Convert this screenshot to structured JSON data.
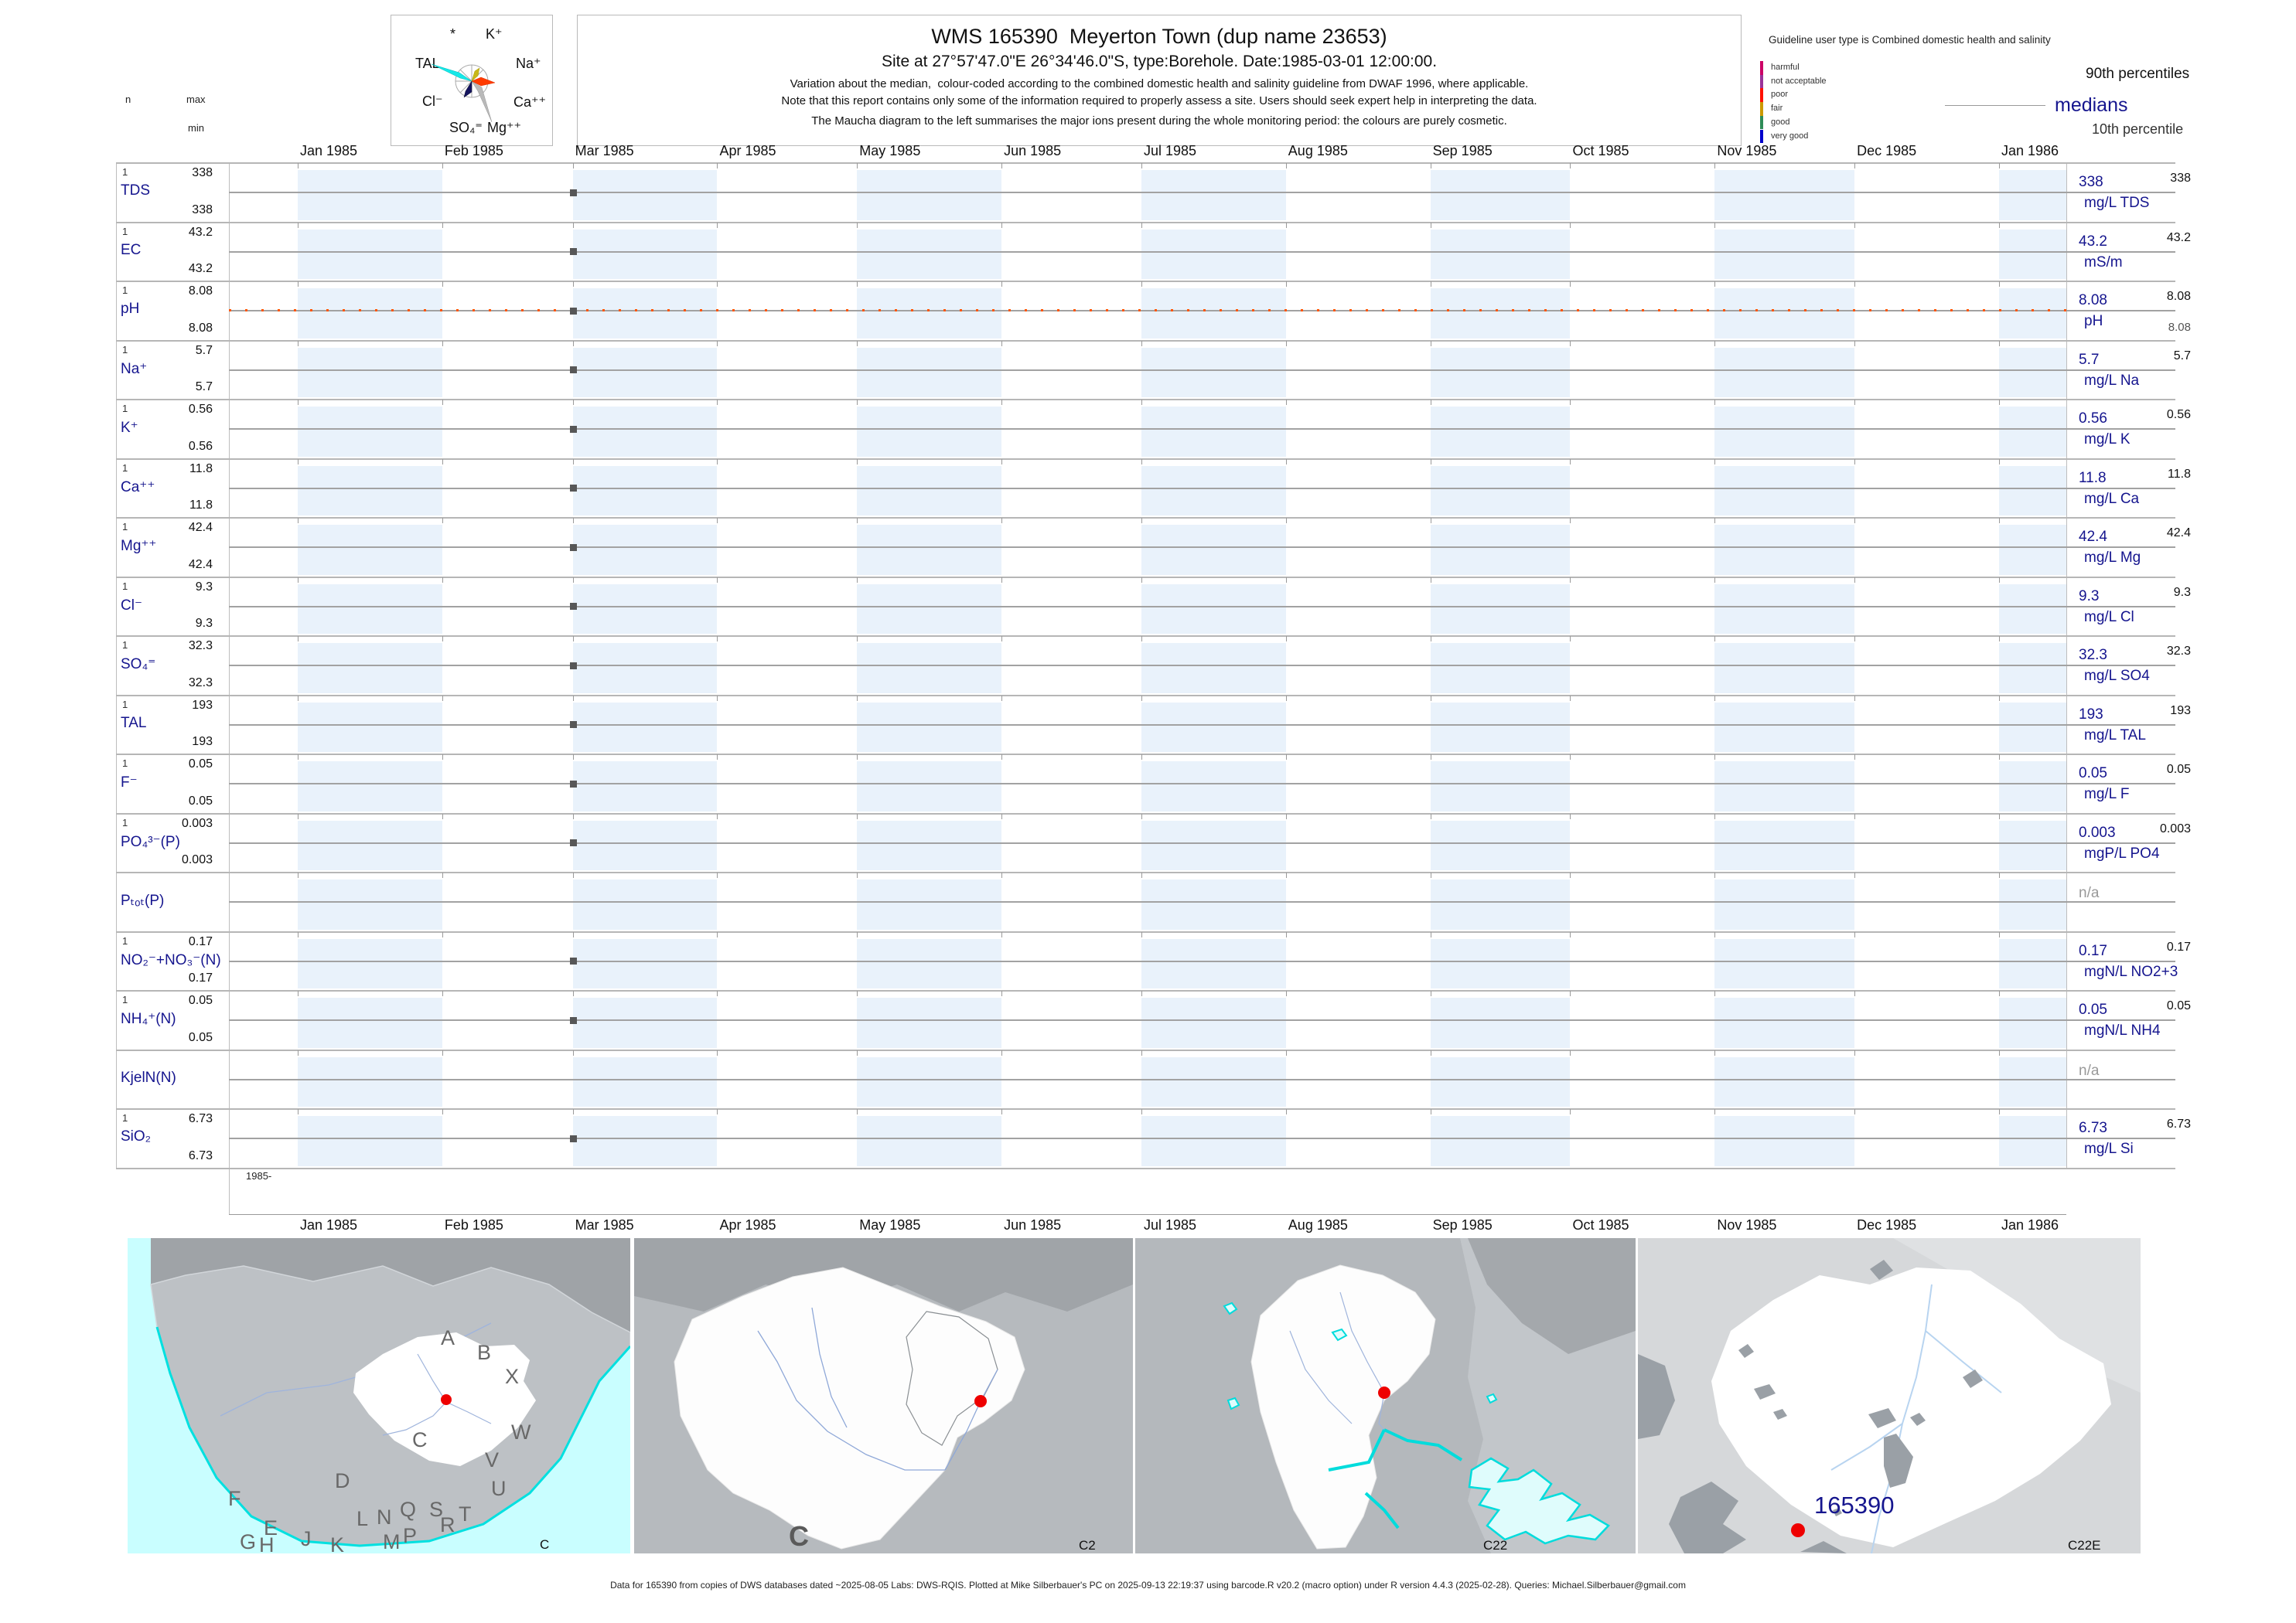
{
  "header": {
    "title": "WMS 165390  Meyerton Town (dup name 23653)",
    "subtitle": "Site at 27°57'47.0\"E 26°34'46.0\"S, type:Borehole. Date:1985-03-01 12:00:00.",
    "note1": "Variation about the median,  colour-coded according to the combined domestic health and salinity guideline from DWAF 1996, where applicable.",
    "note2": "Note that this report contains only some of the information required to properly assess a site. Users should seek expert help in interpreting the data.",
    "note3": "The Maucha diagram to the left summarises the major ions present during the whole monitoring period: the colours are purely cosmetic."
  },
  "maucha": {
    "labels": [
      "*",
      "K⁺",
      "TAL",
      "Na⁺",
      "Cl⁻",
      "Ca⁺⁺",
      "SO₄⁼",
      "Mg⁺⁺"
    ]
  },
  "gutter_headers": {
    "n": "n",
    "max": "max",
    "min": "min"
  },
  "legend": {
    "guideline": "Guideline user type is Combined domestic health and salinity",
    "classes": [
      {
        "label": "harmful",
        "color": "#cc0066"
      },
      {
        "label": "not acceptable",
        "color": "#993399"
      },
      {
        "label": "poor",
        "color": "#ff1100"
      },
      {
        "label": "fair",
        "color": "#cc9900"
      },
      {
        "label": "good",
        "color": "#2e8b57"
      },
      {
        "label": "very good",
        "color": "#0000cc"
      }
    ],
    "p90_label": "90th percentiles",
    "median_label": "medians",
    "p10_label": "10th percentile"
  },
  "axis": {
    "months": [
      "Jan 1985",
      "Feb 1985",
      "Mar 1985",
      "Apr 1985",
      "May 1985",
      "Jun 1985",
      "Jul 1985",
      "Aug 1985",
      "Sep 1985",
      "Oct 1985",
      "Nov 1985",
      "Dec 1985",
      "Jan 1986"
    ],
    "year_label": "1985-"
  },
  "chart_data": {
    "type": "table",
    "title": "WMS 165390 Meyerton Town (dup name 23653)",
    "site": "165390",
    "sample_date": "1985-03-01 12:00:00",
    "x_range": [
      "mid Dec 1984",
      "mid Jan 1986"
    ],
    "x_tick_labels": [
      "Jan 1985",
      "Feb 1985",
      "Mar 1985",
      "Apr 1985",
      "May 1985",
      "Jun 1985",
      "Jul 1985",
      "Aug 1985",
      "Sep 1985",
      "Oct 1985",
      "Nov 1985",
      "Dec 1985",
      "Jan 1986"
    ],
    "sample_month_index": 2,
    "na_text": "n/a",
    "parameters": [
      {
        "name": "TDS",
        "n": "1",
        "max": "338",
        "min": "338",
        "p90": "338",
        "median": "338",
        "p10": "",
        "unit": "mg/L TDS",
        "na": false,
        "guideline_dashes": false
      },
      {
        "name": "EC",
        "n": "1",
        "max": "43.2",
        "min": "43.2",
        "p90": "43.2",
        "median": "43.2",
        "p10": "",
        "unit": "mS/m",
        "na": false,
        "guideline_dashes": false
      },
      {
        "name": "pH",
        "n": "1",
        "max": "8.08",
        "min": "8.08",
        "p90": "8.08",
        "median": "8.08",
        "p10": "8.08",
        "unit": "pH",
        "na": false,
        "guideline_dashes": true
      },
      {
        "name": "Na⁺",
        "n": "1",
        "max": "5.7",
        "min": "5.7",
        "p90": "5.7",
        "median": "5.7",
        "p10": "",
        "unit": "mg/L Na",
        "na": false,
        "guideline_dashes": false
      },
      {
        "name": "K⁺",
        "n": "1",
        "max": "0.56",
        "min": "0.56",
        "p90": "0.56",
        "median": "0.56",
        "p10": "",
        "unit": "mg/L K",
        "na": false,
        "guideline_dashes": false
      },
      {
        "name": "Ca⁺⁺",
        "n": "1",
        "max": "11.8",
        "min": "11.8",
        "p90": "11.8",
        "median": "11.8",
        "p10": "",
        "unit": "mg/L Ca",
        "na": false,
        "guideline_dashes": false
      },
      {
        "name": "Mg⁺⁺",
        "n": "1",
        "max": "42.4",
        "min": "42.4",
        "p90": "42.4",
        "median": "42.4",
        "p10": "",
        "unit": "mg/L Mg",
        "na": false,
        "guideline_dashes": false
      },
      {
        "name": "Cl⁻",
        "n": "1",
        "max": "9.3",
        "min": "9.3",
        "p90": "9.3",
        "median": "9.3",
        "p10": "",
        "unit": "mg/L Cl",
        "na": false,
        "guideline_dashes": false
      },
      {
        "name": "SO₄⁼",
        "n": "1",
        "max": "32.3",
        "min": "32.3",
        "p90": "32.3",
        "median": "32.3",
        "p10": "",
        "unit": "mg/L SO4",
        "na": false,
        "guideline_dashes": false
      },
      {
        "name": "TAL",
        "n": "1",
        "max": "193",
        "min": "193",
        "p90": "193",
        "median": "193",
        "p10": "",
        "unit": "mg/L TAL",
        "na": false,
        "guideline_dashes": false
      },
      {
        "name": "F⁻",
        "n": "1",
        "max": "0.05",
        "min": "0.05",
        "p90": "0.05",
        "median": "0.05",
        "p10": "",
        "unit": "mg/L F",
        "na": false,
        "guideline_dashes": false
      },
      {
        "name": "PO₄³⁻(P)",
        "n": "1",
        "max": "0.003",
        "min": "0.003",
        "p90": "0.003",
        "median": "0.003",
        "p10": "",
        "unit": "mgP/L PO4",
        "na": false,
        "guideline_dashes": false
      },
      {
        "name": "Pₜₒₜ(P)",
        "n": "",
        "max": "",
        "min": "",
        "p90": "",
        "median": "",
        "p10": "",
        "unit": "",
        "na": true,
        "guideline_dashes": false
      },
      {
        "name": "NO₂⁻+NO₃⁻(N)",
        "n": "1",
        "max": "0.17",
        "min": "0.17",
        "p90": "0.17",
        "median": "0.17",
        "p10": "",
        "unit": "mgN/L NO2+3",
        "na": false,
        "guideline_dashes": false
      },
      {
        "name": "NH₄⁺(N)",
        "n": "1",
        "max": "0.05",
        "min": "0.05",
        "p90": "0.05",
        "median": "0.05",
        "p10": "",
        "unit": "mgN/L NH4",
        "na": false,
        "guideline_dashes": false
      },
      {
        "name": "KjelN(N)",
        "n": "",
        "max": "",
        "min": "",
        "p90": "",
        "median": "",
        "p10": "",
        "unit": "",
        "na": true,
        "guideline_dashes": false
      },
      {
        "name": "SiO₂",
        "n": "1",
        "max": "6.73",
        "min": "6.73",
        "p90": "6.73",
        "median": "6.73",
        "p10": "",
        "unit": "mg/L Si",
        "na": false,
        "guideline_dashes": false
      }
    ]
  },
  "maps": {
    "panel1": {
      "id_label": "C",
      "region_letters": [
        "A",
        "B",
        "X",
        "W",
        "C",
        "D",
        "V",
        "U",
        "T",
        "S",
        "R",
        "Q",
        "P",
        "N",
        "M",
        "L",
        "K",
        "J",
        "H",
        "G",
        "F",
        "E"
      ]
    },
    "panel2": {
      "id_label": "C2",
      "region_label": "C"
    },
    "panel3": {
      "id_label": "C22"
    },
    "panel4": {
      "id_label": "C22E",
      "site_label": "165390"
    }
  },
  "footer": "Data for 165390 from copies of DWS databases dated ~2025-08-05 Labs: DWS-RQIS. Plotted at Mike Silberbauer's PC on 2025-09-13 22:19:37 using barcode.R v20.2 (macro option) under R version 4.4.3 (2025-02-28). Queries: Michael.Silberbauer@gmail.com"
}
